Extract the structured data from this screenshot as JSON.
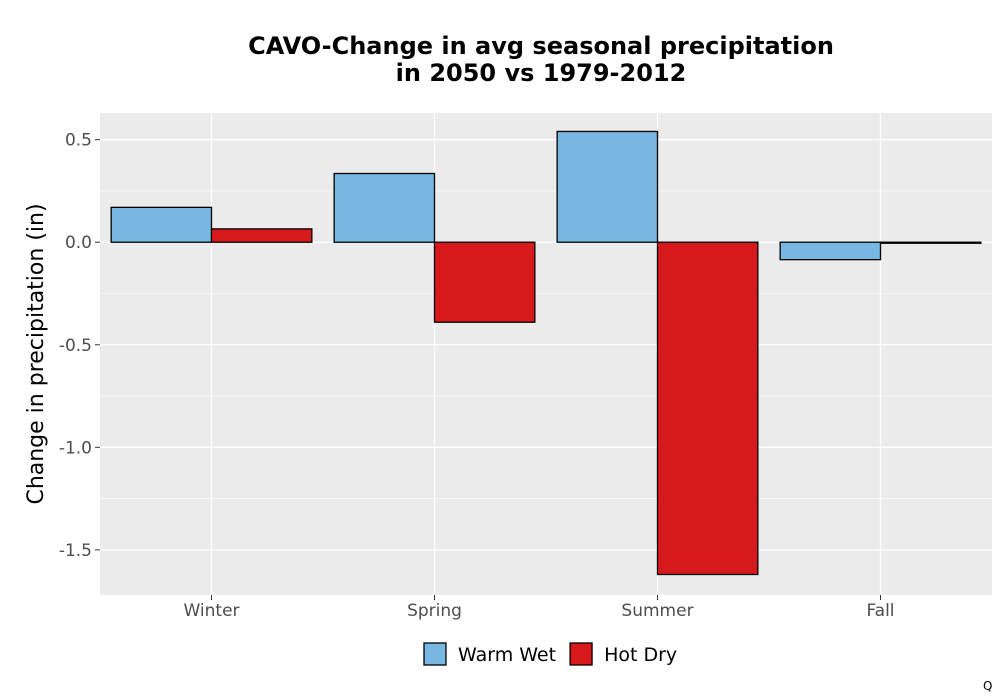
{
  "chart_data": {
    "type": "bar",
    "title": [
      "CAVO-Change in avg seasonal precipitation",
      "in 2050 vs 1979-2012"
    ],
    "xlabel": "",
    "ylabel": "Change in precipitation (in)",
    "categories": [
      "Winter",
      "Spring",
      "Summer",
      "Fall"
    ],
    "series": [
      {
        "name": "Warm Wet",
        "color": "#78b7e2",
        "values": [
          0.17,
          0.335,
          0.54,
          -0.085
        ]
      },
      {
        "name": "Hot Dry",
        "color": "#d7191c",
        "values": [
          0.065,
          -0.39,
          -1.62,
          -0.005
        ]
      }
    ],
    "ylim": [
      -1.72,
      0.63
    ],
    "yticks": [
      0.5,
      0.0,
      -0.5,
      -1.0,
      -1.5
    ],
    "ytick_labels": [
      "0.5",
      "0.0",
      "-0.5",
      "-1.0",
      "-1.5"
    ],
    "grid": true,
    "legend_position": "bottom",
    "panel_color": "#ebebeb"
  },
  "corner_mark": "Q"
}
